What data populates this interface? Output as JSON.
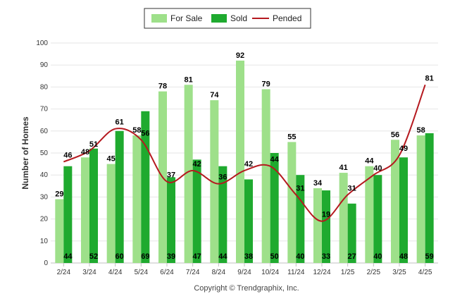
{
  "chart_data": {
    "type": "bar",
    "categories": [
      "2/24",
      "3/24",
      "4/24",
      "5/24",
      "6/24",
      "7/24",
      "8/24",
      "9/24",
      "10/24",
      "11/24",
      "12/24",
      "1/25",
      "2/25",
      "3/25",
      "4/25"
    ],
    "series": [
      {
        "name": "For Sale",
        "kind": "bar",
        "color": "#9ee08a",
        "values": [
          29,
          48,
          45,
          58,
          78,
          81,
          74,
          92,
          79,
          55,
          34,
          41,
          44,
          56,
          58
        ]
      },
      {
        "name": "Sold",
        "kind": "bar",
        "color": "#1faa2f",
        "values": [
          44,
          52,
          60,
          69,
          39,
          47,
          44,
          38,
          50,
          40,
          33,
          27,
          40,
          48,
          59
        ]
      },
      {
        "name": "Pended",
        "kind": "line",
        "color": "#b5191f",
        "values": [
          46,
          51,
          61,
          56,
          37,
          42,
          36,
          42,
          44,
          31,
          19,
          31,
          40,
          49,
          81
        ]
      }
    ],
    "ylabel": "Number of Homes",
    "xlabel": "",
    "ylim": [
      0,
      100
    ],
    "yticks": [
      0,
      10,
      20,
      30,
      40,
      50,
      60,
      70,
      80,
      90,
      100
    ],
    "grid": true,
    "legend_position": "top-center"
  },
  "footer": {
    "copyright": "Copyright © Trendgraphix, Inc."
  }
}
